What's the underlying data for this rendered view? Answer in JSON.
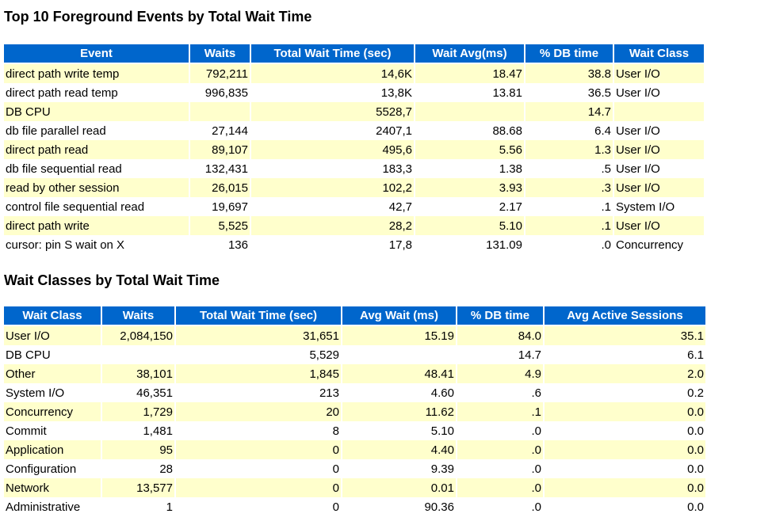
{
  "section1": {
    "title": "Top 10 Foreground Events by Total Wait Time",
    "headers": [
      "Event",
      "Waits",
      "Total Wait Time (sec)",
      "Wait Avg(ms)",
      "% DB time",
      "Wait Class"
    ],
    "rows": [
      [
        "direct path write temp",
        "792,211",
        "14,6K",
        "18.47",
        "38.8",
        "User I/O"
      ],
      [
        "direct path read temp",
        "996,835",
        "13,8K",
        "13.81",
        "36.5",
        "User I/O"
      ],
      [
        "DB CPU",
        "",
        "5528,7",
        "",
        "14.7",
        ""
      ],
      [
        "db file parallel read",
        "27,144",
        "2407,1",
        "88.68",
        "6.4",
        "User I/O"
      ],
      [
        "direct path read",
        "89,107",
        "495,6",
        "5.56",
        "1.3",
        "User I/O"
      ],
      [
        "db file sequential read",
        "132,431",
        "183,3",
        "1.38",
        ".5",
        "User I/O"
      ],
      [
        "read by other session",
        "26,015",
        "102,2",
        "3.93",
        ".3",
        "User I/O"
      ],
      [
        "control file sequential read",
        "19,697",
        "42,7",
        "2.17",
        ".1",
        "System I/O"
      ],
      [
        "direct path write",
        "5,525",
        "28,2",
        "5.10",
        ".1",
        "User I/O"
      ],
      [
        "cursor: pin S wait on X",
        "136",
        "17,8",
        "131.09",
        ".0",
        "Concurrency"
      ]
    ]
  },
  "section2": {
    "title": "Wait Classes by Total Wait Time",
    "headers": [
      "Wait Class",
      "Waits",
      "Total Wait Time (sec)",
      "Avg Wait (ms)",
      "% DB time",
      "Avg Active Sessions"
    ],
    "rows": [
      [
        "User I/O",
        "2,084,150",
        "31,651",
        "15.19",
        "84.0",
        "35.1"
      ],
      [
        "DB CPU",
        "",
        "5,529",
        "",
        "14.7",
        "6.1"
      ],
      [
        "Other",
        "38,101",
        "1,845",
        "48.41",
        "4.9",
        "2.0"
      ],
      [
        "System I/O",
        "46,351",
        "213",
        "4.60",
        ".6",
        "0.2"
      ],
      [
        "Concurrency",
        "1,729",
        "20",
        "11.62",
        ".1",
        "0.0"
      ],
      [
        "Commit",
        "1,481",
        "8",
        "5.10",
        ".0",
        "0.0"
      ],
      [
        "Application",
        "95",
        "0",
        "4.40",
        ".0",
        "0.0"
      ],
      [
        "Configuration",
        "28",
        "0",
        "9.39",
        ".0",
        "0.0"
      ],
      [
        "Network",
        "13,577",
        "0",
        "0.01",
        ".0",
        "0.0"
      ],
      [
        "Administrative",
        "1",
        "0",
        "90.36",
        ".0",
        "0.0"
      ]
    ]
  },
  "colors": {
    "header_bg": "#0066cc",
    "header_text": "#ffffff",
    "row_alt_bg": "#ffffcc",
    "row_bg": "#ffffff"
  }
}
